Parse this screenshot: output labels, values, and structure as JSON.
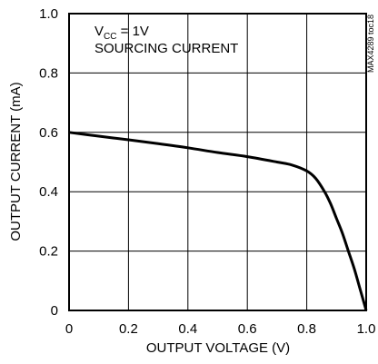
{
  "chart_data": {
    "type": "line",
    "xlabel": "OUTPUT VOLTAGE (V)",
    "ylabel": "OUTPUT CURRENT (mA)",
    "xlim": [
      0,
      1.0
    ],
    "ylim": [
      0,
      1.0
    ],
    "x_ticks": [
      0,
      0.2,
      0.4,
      0.6,
      0.8,
      1.0
    ],
    "x_tick_labels": [
      "0",
      "0.2",
      "0.4",
      "0.6",
      "0.8",
      "1.0"
    ],
    "y_ticks": [
      0,
      0.2,
      0.4,
      0.6,
      0.8,
      1.0
    ],
    "y_tick_labels": [
      "0",
      "0.2",
      "0.4",
      "0.6",
      "0.8",
      "1.0"
    ],
    "grid": true,
    "annotation": {
      "vcc_main": "V",
      "vcc_sub": "CC",
      "vcc_rest": " = 1V",
      "line2": "SOURCING CURRENT"
    },
    "side_code": "MAX4289 toc18",
    "series": [
      {
        "x": [
          0.0,
          0.1,
          0.2,
          0.3,
          0.4,
          0.5,
          0.6,
          0.7,
          0.75,
          0.8,
          0.83,
          0.86,
          0.88,
          0.9,
          0.92,
          0.94,
          0.96,
          0.98,
          1.0
        ],
        "y": [
          0.6,
          0.587,
          0.575,
          0.562,
          0.548,
          0.532,
          0.518,
          0.5,
          0.49,
          0.47,
          0.445,
          0.4,
          0.36,
          0.31,
          0.26,
          0.2,
          0.14,
          0.07,
          0.0
        ]
      }
    ]
  }
}
